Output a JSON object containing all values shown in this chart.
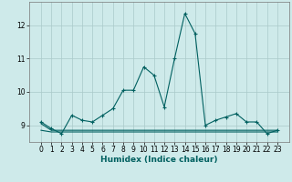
{
  "xlabel": "Humidex (Indice chaleur)",
  "ylabel": "",
  "background_color": "#ceeaea",
  "grid_color": "#aacaca",
  "line_color": "#006060",
  "x": [
    0,
    1,
    2,
    3,
    4,
    5,
    6,
    7,
    8,
    9,
    10,
    11,
    12,
    13,
    14,
    15,
    16,
    17,
    18,
    19,
    20,
    21,
    22,
    23
  ],
  "y_main": [
    9.1,
    8.9,
    8.75,
    9.3,
    9.15,
    9.1,
    9.3,
    9.5,
    10.05,
    10.05,
    10.75,
    10.5,
    9.55,
    11.0,
    12.35,
    11.75,
    9.0,
    9.15,
    9.25,
    9.35,
    9.1,
    9.1,
    8.75,
    8.85
  ],
  "y_flat1": [
    8.85,
    8.8,
    8.8,
    8.8,
    8.8,
    8.8,
    8.8,
    8.8,
    8.8,
    8.8,
    8.8,
    8.8,
    8.8,
    8.8,
    8.8,
    8.8,
    8.8,
    8.8,
    8.8,
    8.8,
    8.8,
    8.8,
    8.8,
    8.8
  ],
  "y_flat2": [
    9.05,
    8.85,
    8.85,
    8.85,
    8.85,
    8.85,
    8.85,
    8.85,
    8.85,
    8.85,
    8.85,
    8.85,
    8.85,
    8.85,
    8.85,
    8.85,
    8.85,
    8.85,
    8.85,
    8.85,
    8.85,
    8.85,
    8.85,
    8.85
  ],
  "ylim": [
    8.5,
    12.7
  ],
  "yticks": [
    9,
    10,
    11,
    12
  ],
  "xticks": [
    0,
    1,
    2,
    3,
    4,
    5,
    6,
    7,
    8,
    9,
    10,
    11,
    12,
    13,
    14,
    15,
    16,
    17,
    18,
    19,
    20,
    21,
    22,
    23
  ],
  "marker": "+",
  "markersize": 3,
  "linewidth": 0.8,
  "label_fontsize": 6.5,
  "tick_fontsize": 5.5
}
